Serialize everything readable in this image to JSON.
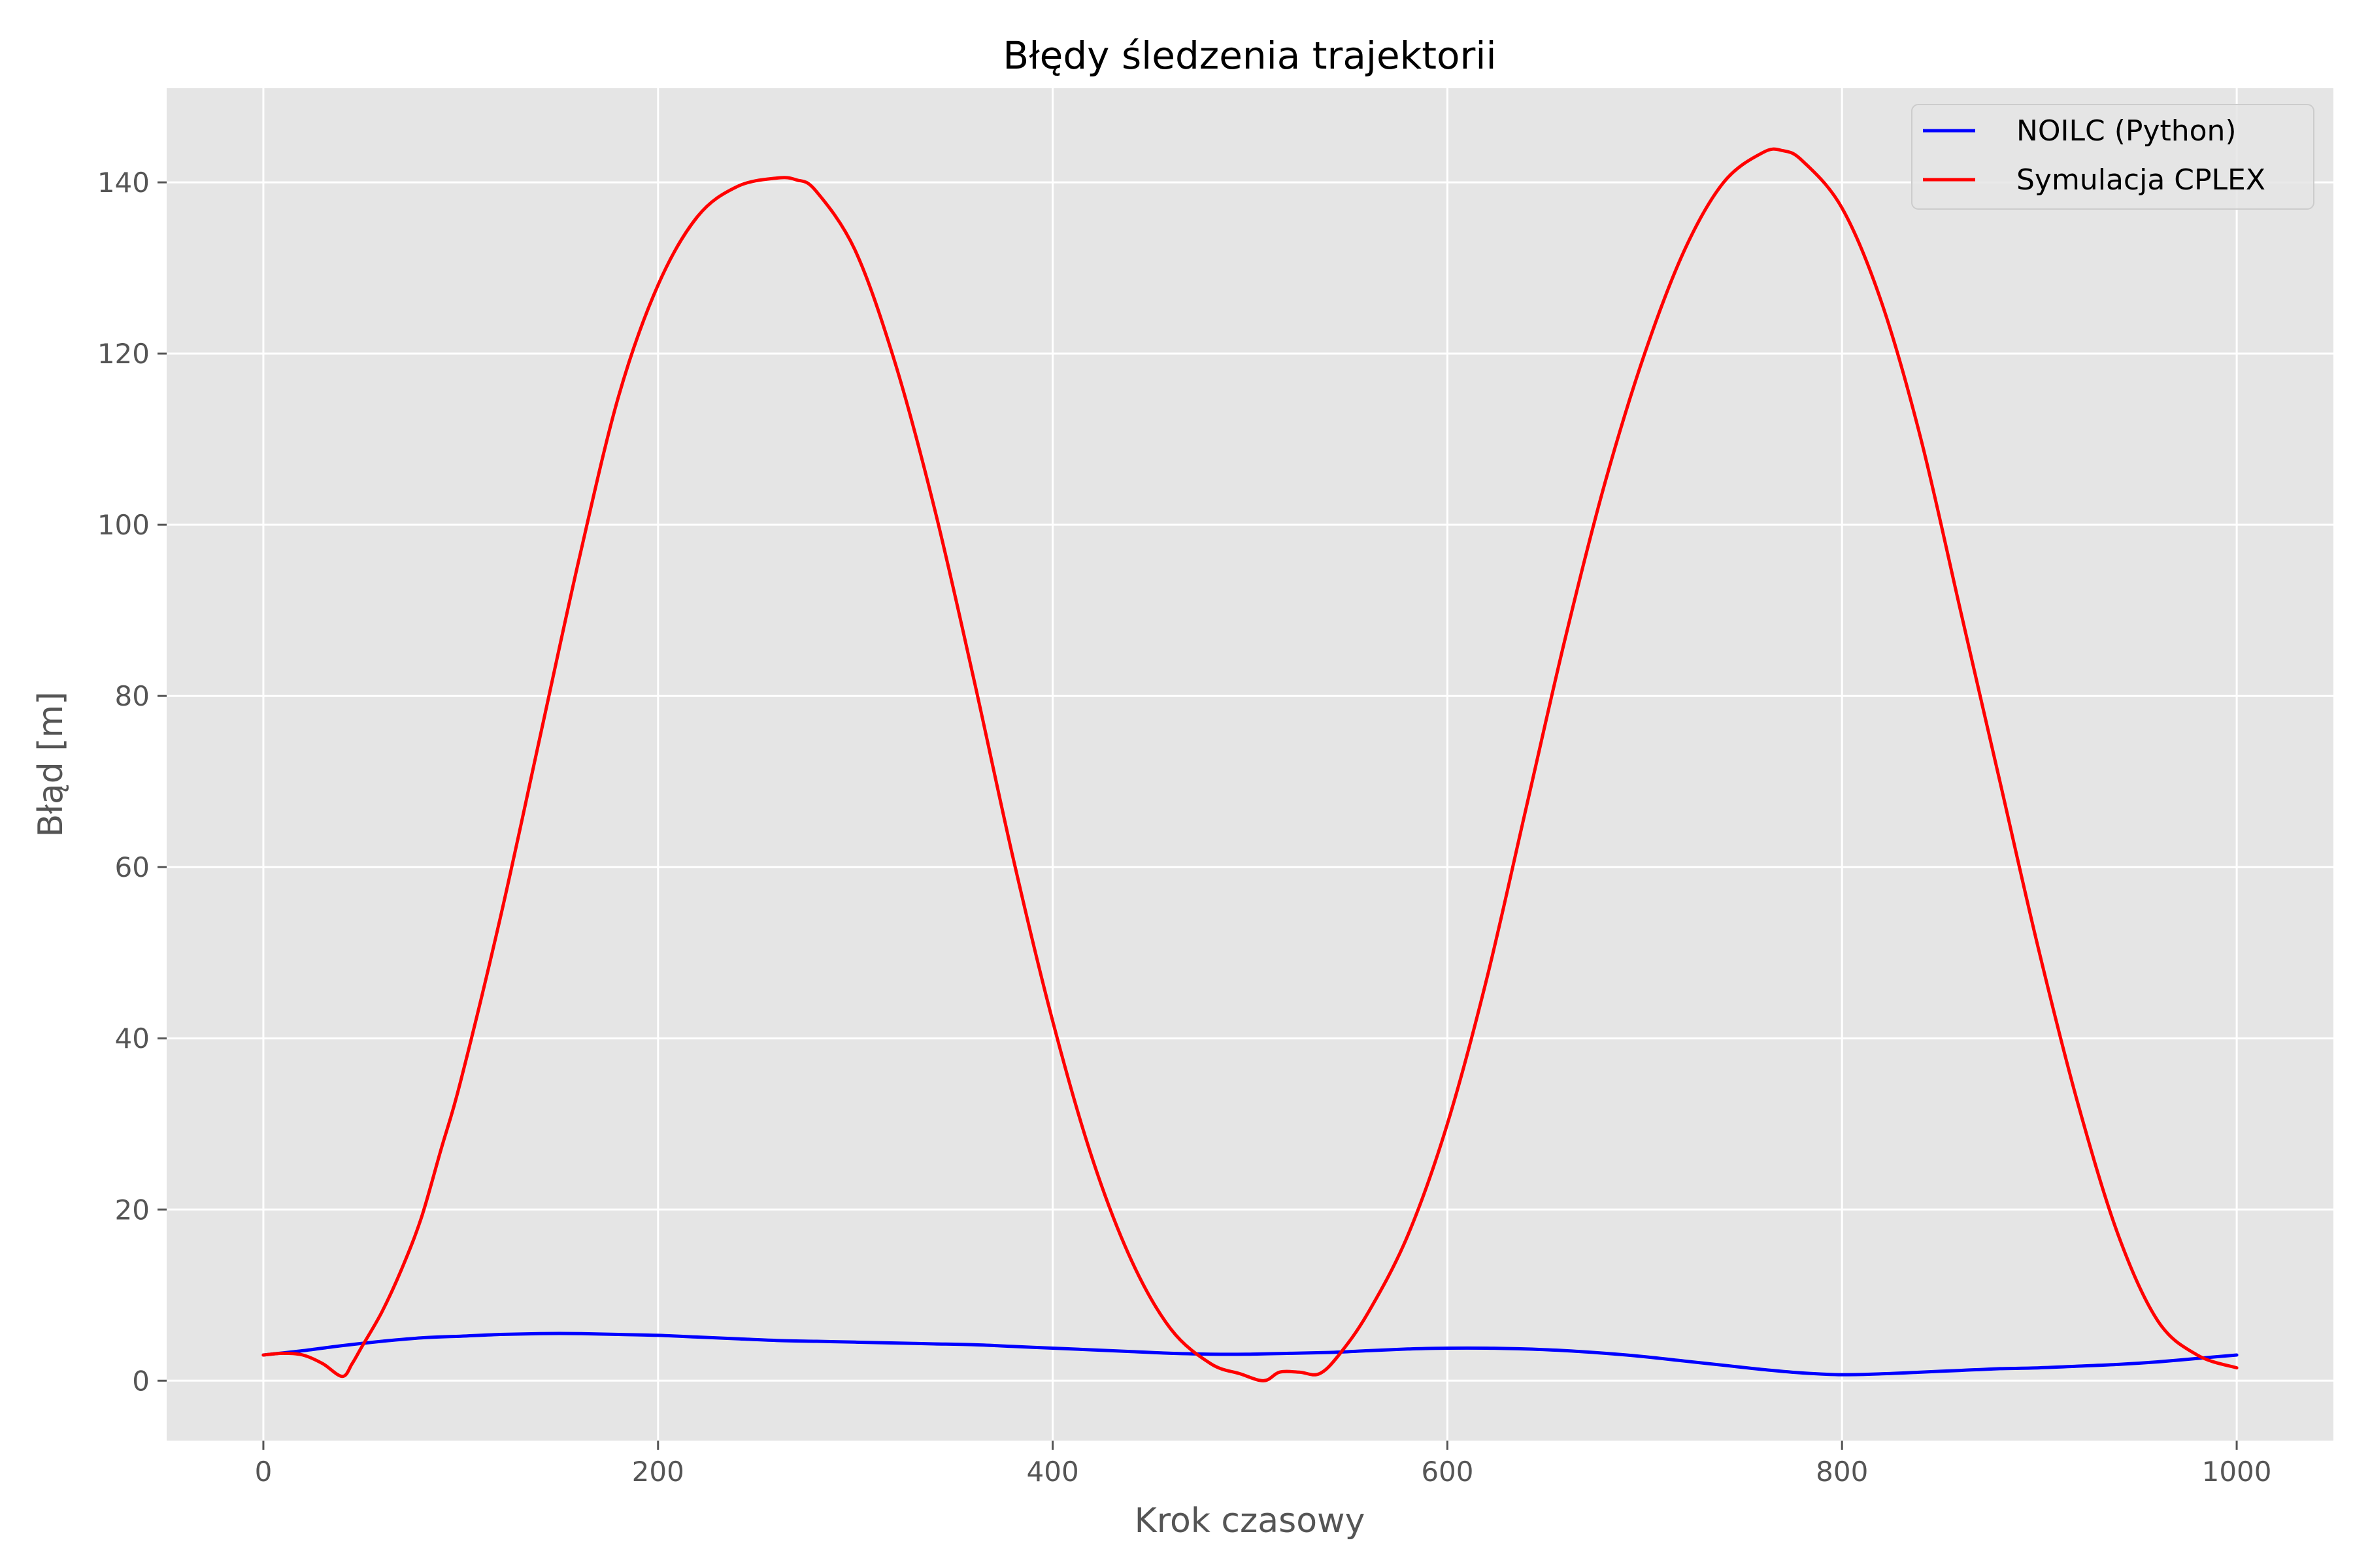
{
  "chart_data": {
    "type": "line",
    "title": "Błędy śledzenia trajektorii",
    "xlabel": "Krok czasowy",
    "ylabel": "Błąd [m]",
    "xlim": [
      -49,
      1049
    ],
    "ylim": [
      -7,
      151
    ],
    "xticks": [
      0,
      200,
      400,
      600,
      800,
      1000
    ],
    "yticks": [
      0,
      20,
      40,
      60,
      80,
      100,
      120,
      140
    ],
    "grid": true,
    "legend_position": "top-right",
    "series": [
      {
        "name": "NOILC (Python)",
        "color": "#0000ff",
        "x": [
          0,
          20,
          40,
          60,
          80,
          100,
          120,
          140,
          160,
          180,
          200,
          220,
          240,
          260,
          280,
          300,
          320,
          340,
          360,
          380,
          400,
          420,
          440,
          460,
          480,
          500,
          520,
          540,
          560,
          580,
          600,
          620,
          640,
          660,
          680,
          700,
          720,
          740,
          760,
          780,
          800,
          820,
          840,
          860,
          880,
          900,
          920,
          940,
          960,
          980,
          1000
        ],
        "y": [
          3.0,
          3.5,
          4.1,
          4.6,
          5.0,
          5.2,
          5.4,
          5.5,
          5.5,
          5.4,
          5.3,
          5.1,
          4.9,
          4.7,
          4.6,
          4.5,
          4.4,
          4.3,
          4.2,
          4.0,
          3.8,
          3.6,
          3.4,
          3.2,
          3.1,
          3.1,
          3.2,
          3.3,
          3.5,
          3.7,
          3.8,
          3.8,
          3.7,
          3.5,
          3.2,
          2.8,
          2.3,
          1.8,
          1.3,
          0.9,
          0.7,
          0.8,
          1.0,
          1.2,
          1.4,
          1.5,
          1.7,
          1.9,
          2.2,
          2.6,
          3.0
        ]
      },
      {
        "name": "Symulacja CPLEX",
        "color": "#ff0000",
        "x": [
          0,
          10,
          20,
          30,
          40,
          45,
          50,
          60,
          70,
          80,
          90,
          100,
          120,
          140,
          160,
          180,
          200,
          220,
          240,
          260,
          270,
          280,
          300,
          320,
          340,
          360,
          380,
          400,
          420,
          440,
          460,
          480,
          495,
          507,
          515,
          525,
          535,
          545,
          560,
          580,
          600,
          620,
          640,
          660,
          680,
          700,
          720,
          740,
          760,
          770,
          780,
          800,
          820,
          840,
          860,
          880,
          900,
          920,
          940,
          960,
          980,
          1000
        ],
        "y": [
          3.0,
          3.2,
          3.0,
          2.0,
          0.5,
          2.0,
          4.0,
          8.0,
          13.0,
          19.0,
          27.0,
          35.0,
          54.0,
          75.0,
          96.0,
          115.0,
          128.0,
          136.0,
          139.5,
          140.5,
          140.3,
          139.0,
          132.0,
          119.0,
          102.0,
          82.0,
          61.0,
          42.0,
          26.0,
          14.0,
          6.0,
          2.0,
          0.8,
          0.0,
          1.0,
          1.0,
          0.8,
          3.0,
          8.0,
          17.0,
          30.0,
          47.0,
          67.0,
          87.0,
          105.0,
          120.0,
          132.0,
          140.0,
          143.5,
          143.7,
          142.5,
          137.0,
          126.0,
          110.0,
          90.0,
          70.0,
          50.0,
          32.0,
          17.0,
          7.0,
          3.0,
          1.5
        ]
      }
    ]
  }
}
